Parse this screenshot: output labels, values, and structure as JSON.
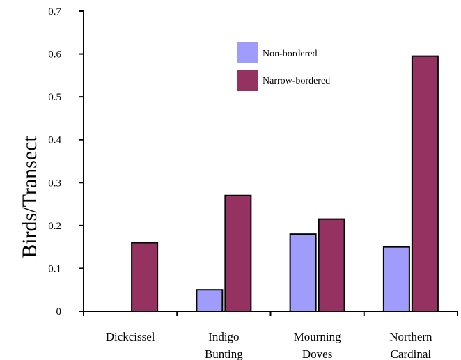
{
  "chart_data": {
    "type": "bar",
    "title": "",
    "xlabel": "",
    "ylabel": "Birds/Transect",
    "ylim": [
      0,
      0.7
    ],
    "yticks": [
      "0",
      "0.1",
      "0.2",
      "0.3",
      "0.4",
      "0.5",
      "0.6",
      "0.7"
    ],
    "categories": [
      [
        "Dickcissel"
      ],
      [
        "Indigo",
        "Bunting"
      ],
      [
        "Mourning",
        "Doves"
      ],
      [
        "Northern",
        "Cardinal"
      ]
    ],
    "series": [
      {
        "name": "Non-bordered",
        "color": "#9f9cfb",
        "values": [
          0,
          0.05,
          0.18,
          0.15
        ]
      },
      {
        "name": "Narrow-bordered",
        "color": "#963262",
        "values": [
          0.16,
          0.27,
          0.215,
          0.595
        ]
      }
    ],
    "legend_position": "top-right",
    "grid": false
  }
}
